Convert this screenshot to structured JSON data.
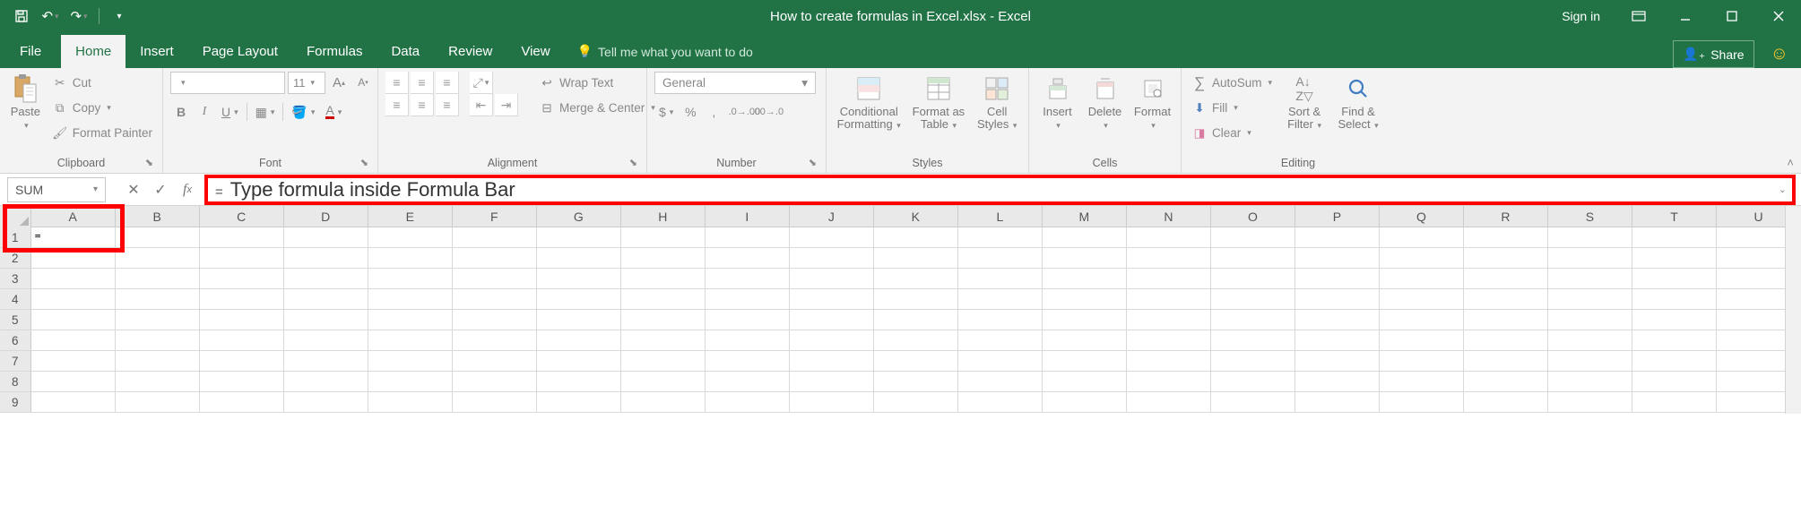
{
  "colors": {
    "excel_green": "#217346",
    "highlight_red": "#ff0000",
    "ribbon_bg": "#f3f3f3",
    "disabled_text": "#888888"
  },
  "titlebar": {
    "document_title": "How to create formulas in Excel.xlsx - Excel",
    "sign_in": "Sign in"
  },
  "tabs": {
    "file": "File",
    "home": "Home",
    "insert": "Insert",
    "page_layout": "Page Layout",
    "formulas": "Formulas",
    "data": "Data",
    "review": "Review",
    "view": "View",
    "tell_me": "Tell me what you want to do",
    "share": "Share",
    "active": "home"
  },
  "ribbon": {
    "clipboard": {
      "label": "Clipboard",
      "paste": "Paste",
      "cut": "Cut",
      "copy": "Copy",
      "format_painter": "Format Painter"
    },
    "font": {
      "label": "Font",
      "font_name": "",
      "font_size": "11",
      "bold": "B",
      "italic": "I",
      "underline": "U"
    },
    "alignment": {
      "label": "Alignment",
      "wrap_text": "Wrap Text",
      "merge_center": "Merge & Center"
    },
    "number": {
      "label": "Number",
      "format": "General",
      "currency": "$",
      "percent": "%",
      "comma": ","
    },
    "styles": {
      "label": "Styles",
      "conditional": "Conditional Formatting",
      "format_table": "Format as Table",
      "cell_styles": "Cell Styles"
    },
    "cells": {
      "label": "Cells",
      "insert": "Insert",
      "delete": "Delete",
      "format": "Format"
    },
    "editing": {
      "label": "Editing",
      "autosum": "AutoSum",
      "fill": "Fill",
      "clear": "Clear",
      "sort_filter": "Sort & Filter",
      "find_select": "Find & Select"
    }
  },
  "formula_bar": {
    "name_box": "SUM",
    "annotation": "Type formula inside Formula Bar",
    "cell_value_prefix": "="
  },
  "grid": {
    "columns": [
      "A",
      "B",
      "C",
      "D",
      "E",
      "F",
      "G",
      "H",
      "I",
      "J",
      "K",
      "L",
      "M",
      "N",
      "O",
      "P",
      "Q",
      "R",
      "S",
      "T",
      "U"
    ],
    "rows": [
      1,
      2,
      3,
      4,
      5,
      6,
      7,
      8,
      9
    ],
    "active_cell": "A1",
    "active_cell_content": "="
  }
}
